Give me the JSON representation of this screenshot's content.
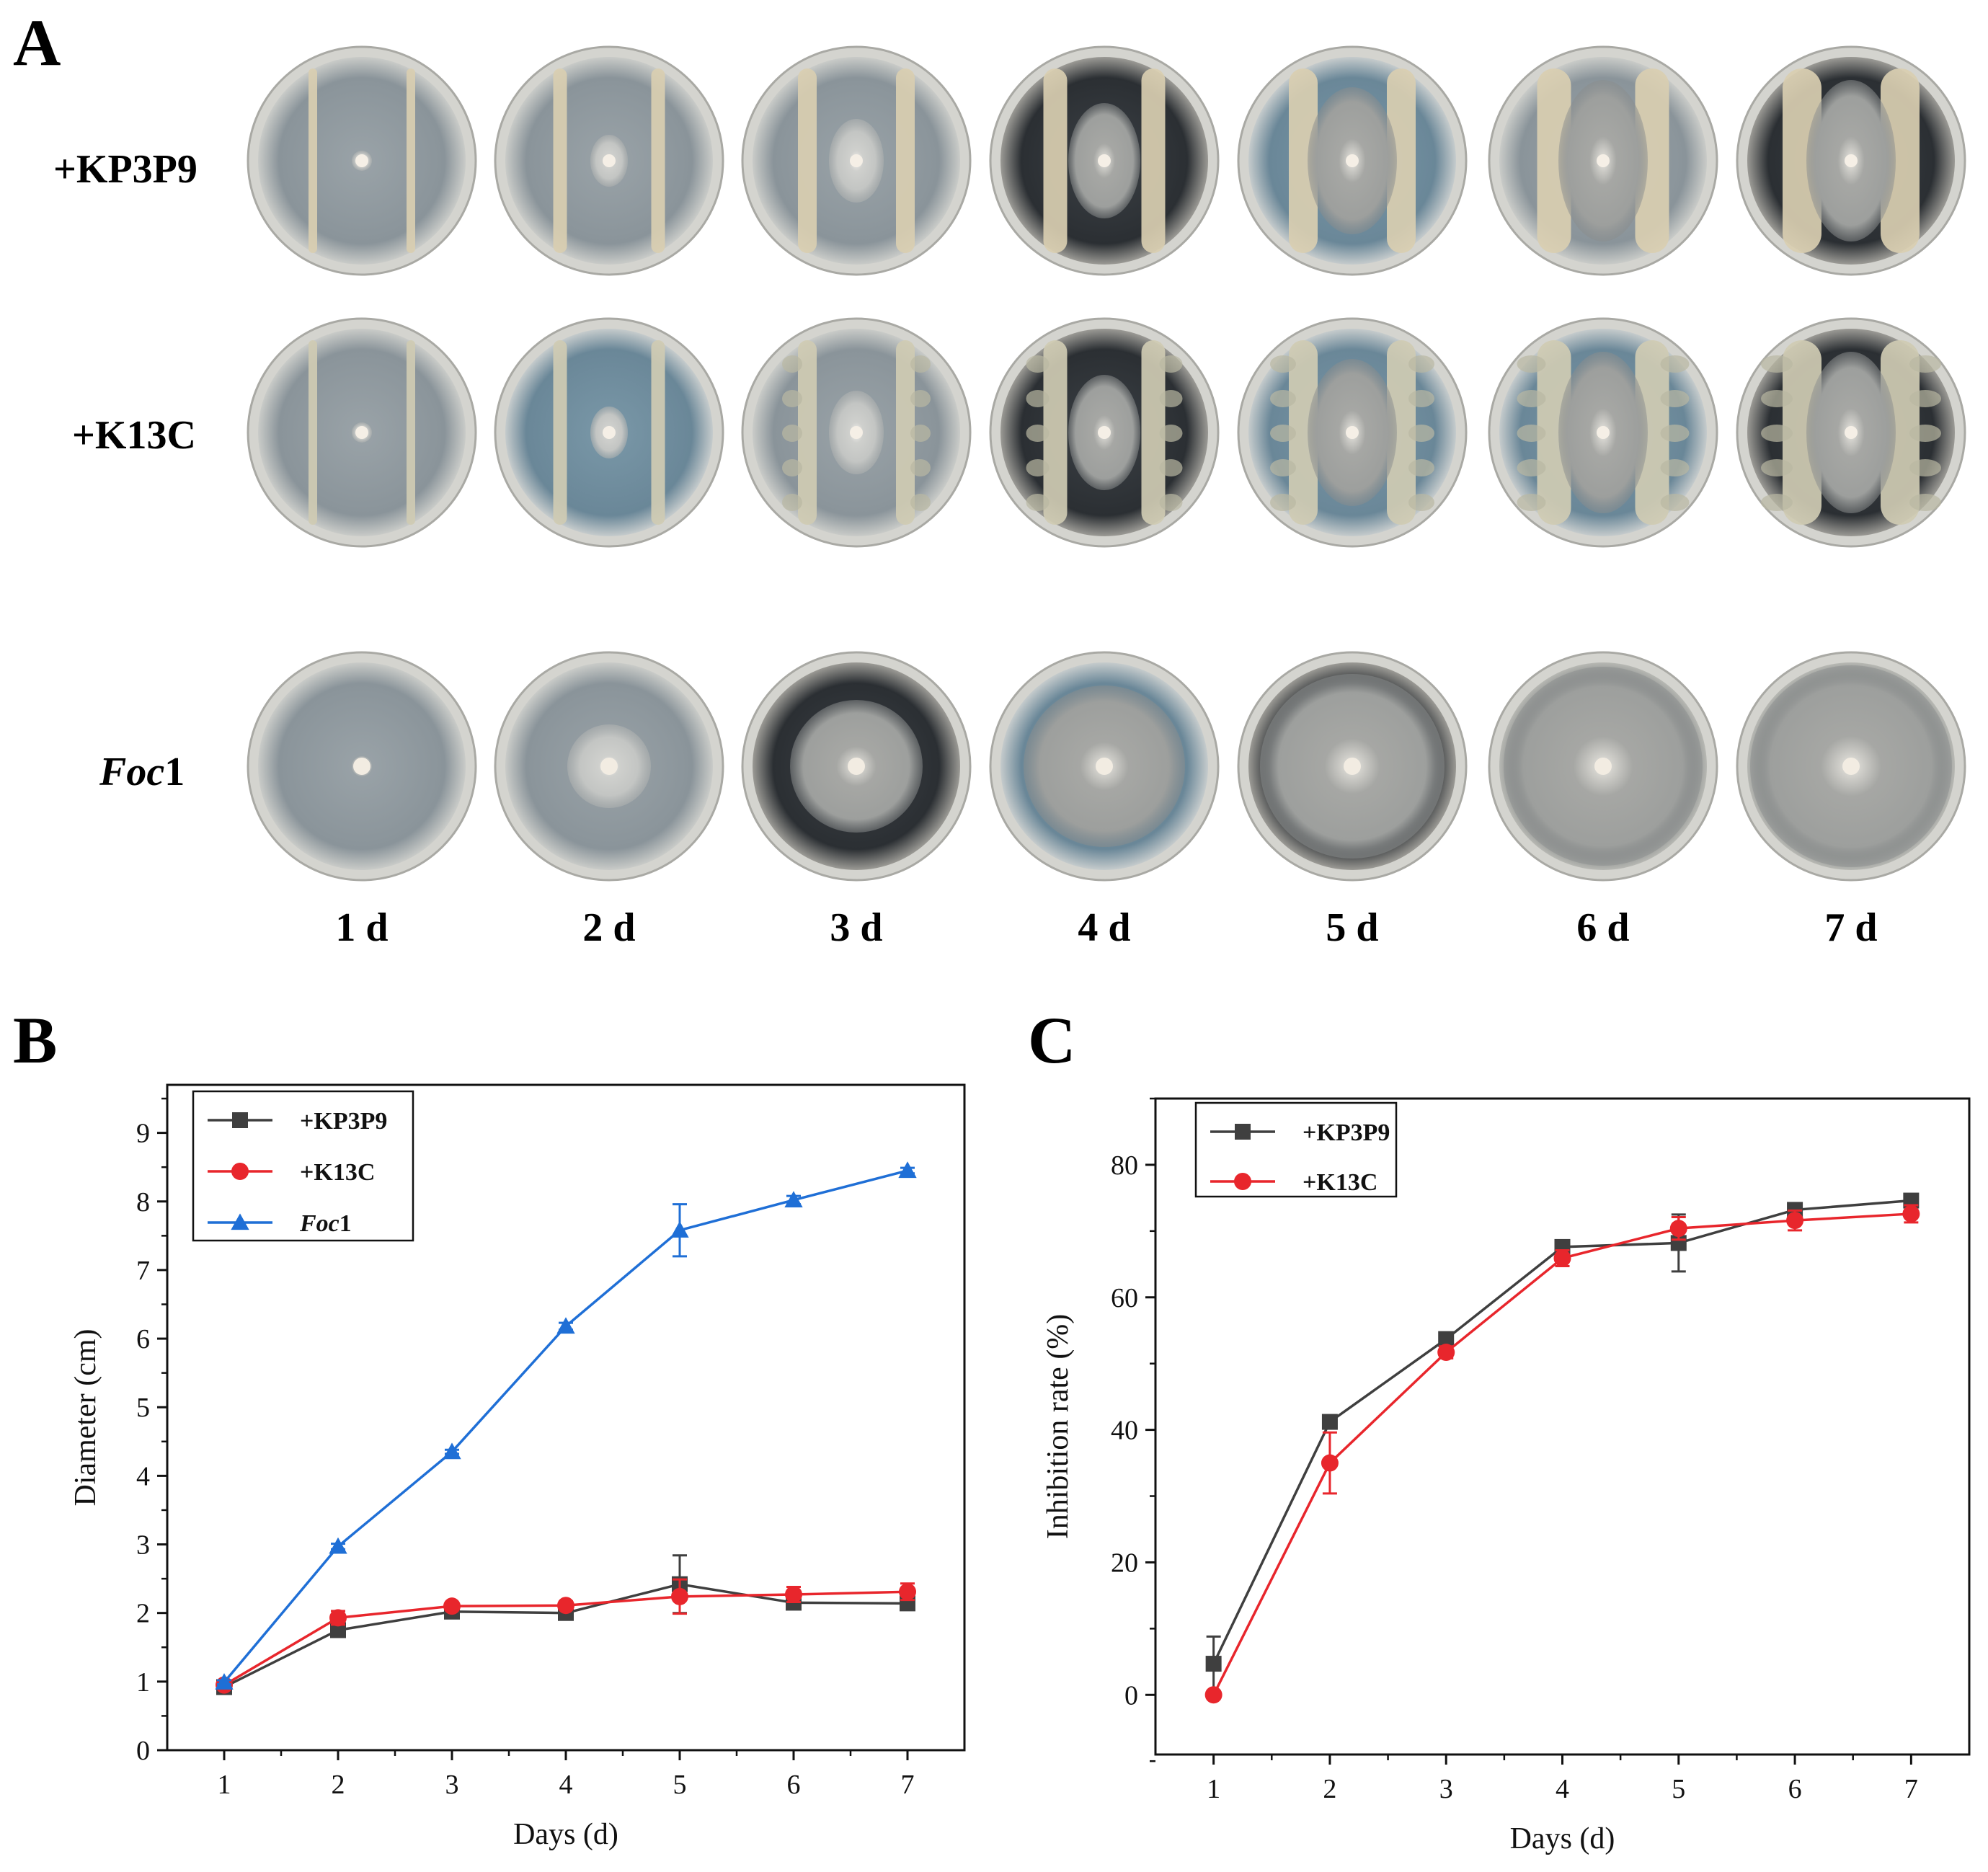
{
  "panels": {
    "a": {
      "letter": "A",
      "rows": [
        {
          "label": "+KP3P9",
          "italic": false
        },
        {
          "label": "+K13C",
          "italic": false
        },
        {
          "label_italic": "Foc",
          "label_rest": "1",
          "italic": true
        }
      ],
      "day_labels": [
        "1 d",
        "2 d",
        "3 d",
        "4 d",
        "5 d",
        "6 d",
        "7 d"
      ]
    },
    "b": {
      "letter": "B"
    },
    "c": {
      "letter": "C"
    }
  },
  "colors": {
    "kp3p9": "#3f3f3f",
    "k13c": "#e8262c",
    "foc1": "#1f6fd6"
  },
  "chart_data": [
    {
      "type": "line",
      "panel": "B",
      "xlabel": "Days (d)",
      "ylabel": "Diameter (cm)",
      "xlim": [
        0.5,
        7.5
      ],
      "ylim": [
        0,
        9.7
      ],
      "x": [
        1,
        2,
        3,
        4,
        5,
        6,
        7
      ],
      "xticks": [
        "1",
        "2",
        "3",
        "4",
        "5",
        "6",
        "7"
      ],
      "yticks": [
        "0",
        "1",
        "2",
        "3",
        "4",
        "5",
        "6",
        "7",
        "8",
        "9"
      ],
      "legend_position": "top-left",
      "series": [
        {
          "name": "+KP3P9",
          "marker": "square",
          "color": "#3f3f3f",
          "values": [
            0.92,
            1.75,
            2.02,
            2.0,
            2.42,
            2.15,
            2.14
          ],
          "errors": [
            0.03,
            0.05,
            0.03,
            0.04,
            0.42,
            0.04,
            0.04
          ]
        },
        {
          "name": "+K13C",
          "marker": "circle",
          "color": "#e8262c",
          "values": [
            0.95,
            1.93,
            2.1,
            2.11,
            2.24,
            2.27,
            2.31
          ],
          "errors": [
            0.03,
            0.1,
            0.04,
            0.06,
            0.25,
            0.11,
            0.12
          ]
        },
        {
          "name_italic": "Foc",
          "name_rest": "1",
          "marker": "triangle",
          "color": "#1f6fd6",
          "values": [
            0.99,
            2.97,
            4.35,
            6.18,
            7.58,
            8.02,
            8.45
          ],
          "errors": [
            0.03,
            0.04,
            0.03,
            0.05,
            0.38,
            0.06,
            0.04
          ]
        }
      ]
    },
    {
      "type": "line",
      "panel": "C",
      "xlabel": "Days (d)",
      "ylabel": "Inhibition rate (%)",
      "xlim": [
        0.5,
        7.5
      ],
      "ylim": [
        -9,
        90
      ],
      "x": [
        1,
        2,
        3,
        4,
        5,
        6,
        7
      ],
      "xticks": [
        "1",
        "2",
        "3",
        "4",
        "5",
        "6",
        "7"
      ],
      "yticks": [
        "0",
        "20",
        "40",
        "60",
        "80"
      ],
      "legend_position": "top-left",
      "series": [
        {
          "name": "+KP3P9",
          "marker": "square",
          "color": "#3f3f3f",
          "values": [
            4.7,
            41.2,
            53.7,
            67.6,
            68.2,
            73.2,
            74.6
          ],
          "errors": [
            4.1,
            0.9,
            0.7,
            0.6,
            4.3,
            0.6,
            0.5
          ]
        },
        {
          "name": "+K13C",
          "marker": "circle",
          "color": "#e8262c",
          "values": [
            0.0,
            35.0,
            51.7,
            65.9,
            70.4,
            71.6,
            72.6
          ],
          "errors": [
            0.4,
            4.6,
            0.9,
            1.2,
            1.7,
            1.5,
            1.3
          ]
        }
      ]
    }
  ]
}
